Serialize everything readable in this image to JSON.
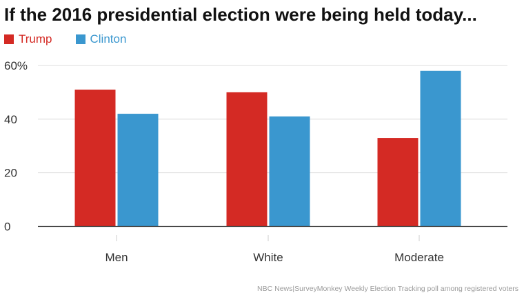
{
  "chart_data": {
    "type": "bar",
    "title": "If the 2016 presidential election were being held today...",
    "categories": [
      "Men",
      "White",
      "Moderate"
    ],
    "series": [
      {
        "name": "Trump",
        "color": "#d42a24",
        "values": [
          51,
          50,
          33
        ]
      },
      {
        "name": "Clinton",
        "color": "#3a97cf",
        "values": [
          42,
          41,
          58
        ]
      }
    ],
    "ylim": [
      0,
      60
    ],
    "yticks": [
      0,
      20,
      40,
      60
    ],
    "ytick_labels": [
      "0",
      "20",
      "40",
      "60%"
    ],
    "xlabel": "",
    "ylabel": "",
    "grid": true,
    "legend_position": "top-left",
    "source": "NBC News|SurveyMonkey Weekly Election Tracking poll among registered voters"
  }
}
